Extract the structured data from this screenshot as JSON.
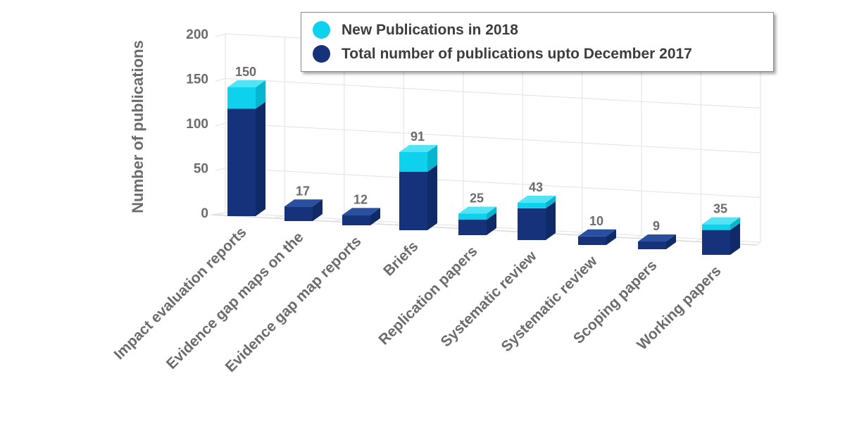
{
  "chart_data": {
    "type": "bar",
    "stacked": true,
    "three_d": true,
    "title": "",
    "xlabel": "",
    "ylabel": "Number of publications",
    "ylim": [
      0,
      200
    ],
    "yticks": [
      0,
      50,
      100,
      150,
      200
    ],
    "grid": true,
    "legend_position": "top-right",
    "categories": [
      "Impact evaluation reports",
      "Evidence gap maps on the",
      "Evidence gap map reports",
      "Briefs",
      "Replication papers",
      "Systematic review",
      "Systematic review",
      "Scoping papers",
      "Working papers"
    ],
    "series": [
      {
        "name": "Total number of publications upto December 2017",
        "color": "#15327a",
        "values": [
          125,
          17,
          12,
          68,
          18,
          37,
          10,
          9,
          29
        ]
      },
      {
        "name": "New Publications in 2018",
        "color": "#0ed2ed",
        "values": [
          25,
          0,
          0,
          23,
          7,
          6,
          0,
          0,
          6
        ]
      }
    ],
    "totals": [
      150,
      17,
      12,
      91,
      25,
      43,
      10,
      9,
      35
    ]
  }
}
